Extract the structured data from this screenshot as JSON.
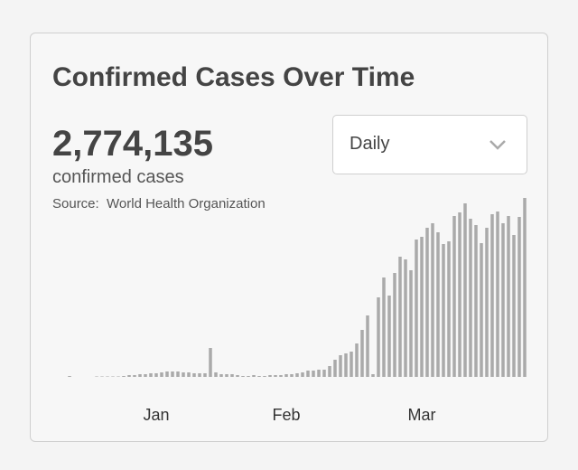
{
  "card": {
    "title": "Confirmed Cases Over Time",
    "total": "2,774,135",
    "total_label": "confirmed cases",
    "source": "Source:  World Health Organization",
    "dropdown": "Daily"
  },
  "chart_data": {
    "type": "bar",
    "color": "#aaaaaa",
    "categories": [
      null,
      null,
      null,
      null,
      null,
      null,
      null,
      null,
      null,
      null,
      null,
      null,
      null,
      null,
      null,
      null,
      "Jan",
      null,
      null,
      null,
      null,
      null,
      null,
      null,
      null,
      null,
      null,
      null,
      null,
      null,
      null,
      null,
      null,
      null,
      null,
      null,
      null,
      null,
      null,
      null,
      "Feb",
      null,
      null,
      null,
      null,
      null,
      null,
      null,
      null,
      null,
      null,
      null,
      null,
      null,
      null,
      null,
      null,
      null,
      null,
      null,
      null,
      null,
      null,
      null,
      null,
      "Mar",
      null,
      null,
      null,
      null,
      null,
      null,
      null,
      null,
      null,
      null,
      null,
      null,
      null,
      null,
      null,
      null,
      null,
      null,
      null
    ],
    "values": [
      500,
      0,
      0,
      0,
      0,
      250,
      250,
      250,
      250,
      250,
      500,
      1000,
      1000,
      1500,
      1500,
      2000,
      2000,
      2500,
      3000,
      3000,
      3000,
      2500,
      2500,
      2000,
      2000,
      2000,
      16000,
      2500,
      1500,
      1500,
      1500,
      1000,
      500,
      500,
      1000,
      500,
      500,
      1000,
      1000,
      1000,
      1500,
      1500,
      2000,
      2500,
      3500,
      3500,
      4000,
      4000,
      6000,
      9500,
      12000,
      13000,
      14000,
      18500,
      26000,
      34000,
      1500,
      44000,
      55000,
      45000,
      57500,
      66500,
      65000,
      59000,
      76000,
      77500,
      82500,
      85000,
      80000,
      73500,
      75000,
      89000,
      91000,
      96000,
      87500,
      84000,
      74000,
      82500,
      90000,
      91500,
      85000,
      89000,
      78500,
      88500,
      99000
    ]
  }
}
